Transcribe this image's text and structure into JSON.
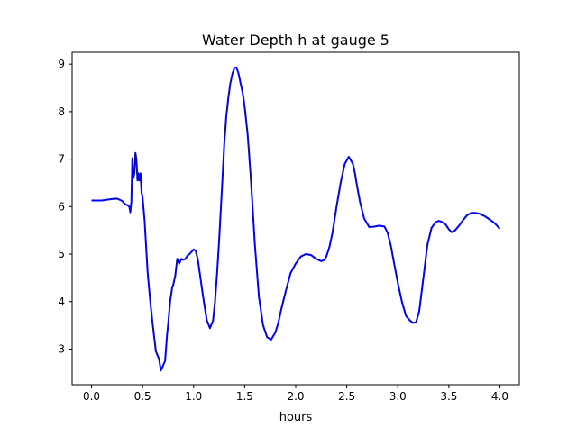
{
  "chart_data": {
    "type": "line",
    "title": "Water Depth h at gauge 5",
    "xlabel": "hours",
    "ylabel": "",
    "xlim": [
      -0.19,
      4.19
    ],
    "ylim": [
      2.25,
      9.25
    ],
    "xticks": [
      0.0,
      0.5,
      1.0,
      1.5,
      2.0,
      2.5,
      3.0,
      3.5,
      4.0
    ],
    "xtick_labels": [
      "0.0",
      "0.5",
      "1.0",
      "1.5",
      "2.0",
      "2.5",
      "3.0",
      "3.5",
      "4.0"
    ],
    "yticks": [
      3,
      4,
      5,
      6,
      7,
      8,
      9
    ],
    "ytick_labels": [
      "3",
      "4",
      "5",
      "6",
      "7",
      "8",
      "9"
    ],
    "grid": false,
    "series": [
      {
        "color": "#0000ff",
        "x": [
          0.0,
          0.1,
          0.2,
          0.25,
          0.3,
          0.33,
          0.35,
          0.37,
          0.38,
          0.39,
          0.4,
          0.41,
          0.42,
          0.43,
          0.44,
          0.45,
          0.46,
          0.47,
          0.48,
          0.49,
          0.5,
          0.52,
          0.55,
          0.58,
          0.6,
          0.63,
          0.66,
          0.68,
          0.7,
          0.72,
          0.74,
          0.75,
          0.77,
          0.79,
          0.8,
          0.82,
          0.84,
          0.86,
          0.87,
          0.88,
          0.9,
          0.92,
          0.94,
          0.96,
          0.98,
          1.0,
          1.02,
          1.04,
          1.06,
          1.08,
          1.1,
          1.13,
          1.16,
          1.19,
          1.21,
          1.23,
          1.25,
          1.28,
          1.3,
          1.32,
          1.34,
          1.36,
          1.38,
          1.4,
          1.42,
          1.44,
          1.46,
          1.48,
          1.5,
          1.53,
          1.56,
          1.6,
          1.64,
          1.68,
          1.72,
          1.76,
          1.8,
          1.83,
          1.86,
          1.9,
          1.95,
          2.0,
          2.05,
          2.1,
          2.15,
          2.2,
          2.25,
          2.28,
          2.3,
          2.33,
          2.36,
          2.4,
          2.44,
          2.48,
          2.52,
          2.56,
          2.58,
          2.6,
          2.63,
          2.67,
          2.72,
          2.77,
          2.82,
          2.87,
          2.9,
          2.93,
          2.96,
          3.0,
          3.04,
          3.08,
          3.12,
          3.15,
          3.18,
          3.21,
          3.25,
          3.29,
          3.33,
          3.37,
          3.4,
          3.43,
          3.47,
          3.5,
          3.53,
          3.56,
          3.6,
          3.64,
          3.68,
          3.72,
          3.76,
          3.8,
          3.85,
          3.9,
          3.95,
          4.0
        ],
        "y": [
          6.13,
          6.13,
          6.16,
          6.17,
          6.12,
          6.05,
          6.03,
          6.0,
          5.88,
          6.1,
          7.02,
          6.6,
          6.7,
          7.13,
          7.0,
          6.55,
          6.7,
          6.55,
          6.7,
          6.3,
          6.2,
          5.7,
          4.6,
          3.9,
          3.5,
          2.95,
          2.8,
          2.55,
          2.65,
          2.75,
          3.3,
          3.5,
          4.0,
          4.3,
          4.35,
          4.55,
          4.9,
          4.8,
          4.85,
          4.9,
          4.88,
          4.9,
          4.97,
          5.0,
          5.05,
          5.1,
          5.07,
          4.9,
          4.6,
          4.3,
          4.0,
          3.6,
          3.44,
          3.6,
          4.0,
          4.6,
          5.3,
          6.5,
          7.3,
          7.9,
          8.3,
          8.6,
          8.8,
          8.92,
          8.93,
          8.8,
          8.6,
          8.4,
          8.1,
          7.5,
          6.6,
          5.2,
          4.1,
          3.5,
          3.25,
          3.2,
          3.35,
          3.55,
          3.85,
          4.2,
          4.6,
          4.8,
          4.95,
          5.0,
          4.98,
          4.9,
          4.85,
          4.88,
          4.95,
          5.15,
          5.45,
          6.0,
          6.5,
          6.9,
          7.05,
          6.9,
          6.7,
          6.45,
          6.1,
          5.75,
          5.57,
          5.58,
          5.6,
          5.58,
          5.45,
          5.2,
          4.85,
          4.4,
          4.0,
          3.7,
          3.6,
          3.55,
          3.57,
          3.8,
          4.5,
          5.2,
          5.55,
          5.67,
          5.7,
          5.68,
          5.62,
          5.52,
          5.46,
          5.5,
          5.6,
          5.72,
          5.82,
          5.87,
          5.87,
          5.85,
          5.8,
          5.73,
          5.65,
          5.53
        ]
      }
    ]
  }
}
